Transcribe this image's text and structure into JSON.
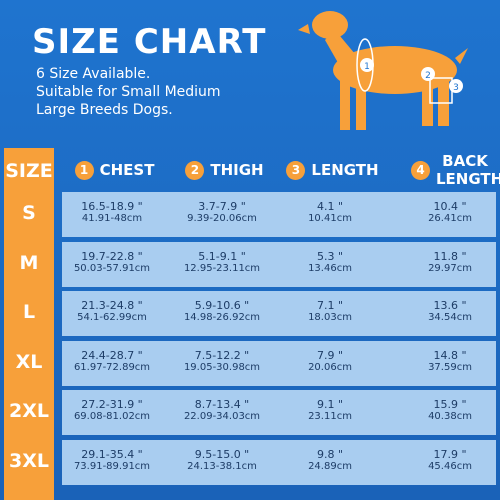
{
  "header": {
    "title": "SIZE CHART",
    "lines": [
      "6 Size Available.",
      "Suitable for Small Medium",
      "Large Breeds Dogs."
    ]
  },
  "diagram_labels": [
    "1",
    "2",
    "3"
  ],
  "table": {
    "size_header": "SIZE",
    "columns": [
      {
        "number": "1",
        "label": "CHEST"
      },
      {
        "number": "2",
        "label": "THIGH"
      },
      {
        "number": "3",
        "label": "LENGTH"
      },
      {
        "number": "4",
        "label": "BACK LENGTH"
      }
    ],
    "rows": [
      {
        "size": "S",
        "cells": [
          [
            "16.5-18.9 \"",
            "41.91-48cm"
          ],
          [
            "3.7-7.9 \"",
            "9.39-20.06cm"
          ],
          [
            "4.1 \"",
            "10.41cm"
          ],
          [
            "10.4 \"",
            "26.41cm"
          ]
        ]
      },
      {
        "size": "M",
        "cells": [
          [
            "19.7-22.8 \"",
            "50.03-57.91cm"
          ],
          [
            "5.1-9.1 \"",
            "12.95-23.11cm"
          ],
          [
            "5.3 \"",
            "13.46cm"
          ],
          [
            "11.8 \"",
            "29.97cm"
          ]
        ]
      },
      {
        "size": "L",
        "cells": [
          [
            "21.3-24.8 \"",
            "54.1-62.99cm"
          ],
          [
            "5.9-10.6 \"",
            "14.98-26.92cm"
          ],
          [
            "7.1 \"",
            "18.03cm"
          ],
          [
            "13.6 \"",
            "34.54cm"
          ]
        ]
      },
      {
        "size": "XL",
        "cells": [
          [
            "24.4-28.7 \"",
            "61.97-72.89cm"
          ],
          [
            "7.5-12.2 \"",
            "19.05-30.98cm"
          ],
          [
            "7.9 \"",
            "20.06cm"
          ],
          [
            "14.8 \"",
            "37.59cm"
          ]
        ]
      },
      {
        "size": "2XL",
        "cells": [
          [
            "27.2-31.9 \"",
            "69.08-81.02cm"
          ],
          [
            "8.7-13.4 \"",
            "22.09-34.03cm"
          ],
          [
            "9.1 \"",
            "23.11cm"
          ],
          [
            "15.9 \"",
            "40.38cm"
          ]
        ]
      },
      {
        "size": "3XL",
        "cells": [
          [
            "29.1-35.4 \"",
            "73.91-89.91cm"
          ],
          [
            "9.5-15.0 \"",
            "24.13-38.1cm"
          ],
          [
            "9.8 \"",
            "24.89cm"
          ],
          [
            "17.9 \"",
            "45.46cm"
          ]
        ]
      }
    ]
  }
}
